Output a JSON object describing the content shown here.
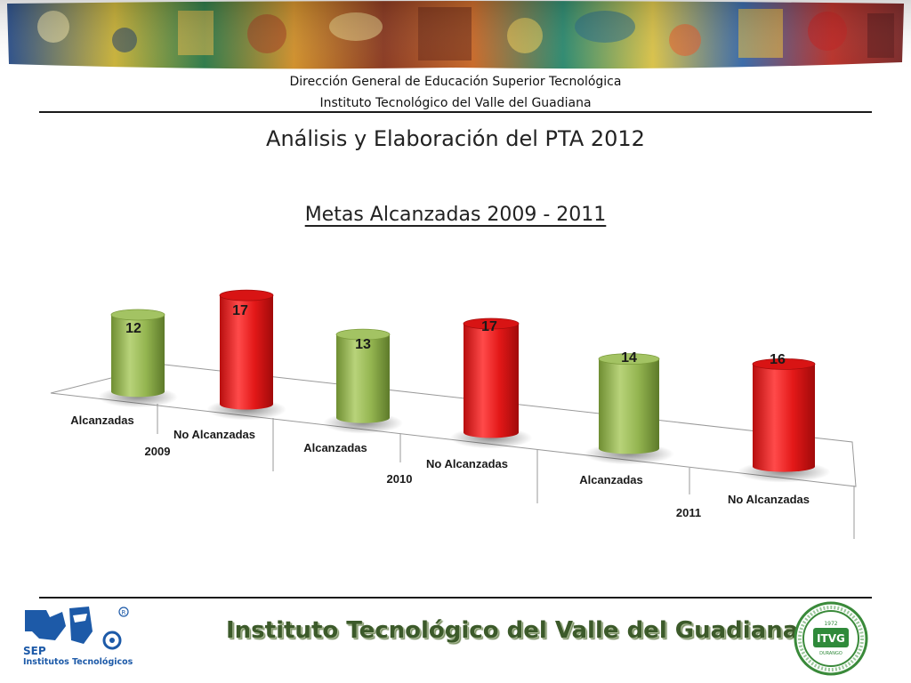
{
  "header": {
    "line1": "Dirección General de Educación Superior Tecnológica",
    "line2": "Instituto Tecnológico del Valle del Guadiana"
  },
  "title": "Análisis  y Elaboración del PTA 2012",
  "subtitle": "Metas Alcanzadas 2009 - 2011",
  "footer": {
    "institution": "Instituto Tecnológico del Valle del Guadiana",
    "left_logo_line1": "SEP",
    "left_logo_line2": "Institutos Tecnológicos",
    "right_logo_text": "ITVG",
    "right_logo_year": "1972",
    "right_logo_city": "DURANGO"
  },
  "colors": {
    "green": "#8db046",
    "red": "#e11a1a",
    "rule": "#1a1a1a"
  },
  "chart_data": {
    "type": "bar",
    "style": "3d-cylinder",
    "groups": [
      "2009",
      "2010",
      "2011"
    ],
    "categories": [
      "Alcanzadas",
      "No Alcanzadas",
      "Alcanzadas",
      "No Alcanzadas",
      "Alcanzadas",
      "No Alcanzadas"
    ],
    "values": [
      12,
      17,
      13,
      17,
      14,
      16
    ],
    "data_labels": [
      "12",
      "17",
      "13",
      "17",
      "14",
      "16"
    ],
    "bar_colors": [
      "#8db046",
      "#e11a1a",
      "#8db046",
      "#e11a1a",
      "#8db046",
      "#e11a1a"
    ],
    "ylim": [
      0,
      17
    ],
    "grid": false,
    "legend": "none"
  }
}
